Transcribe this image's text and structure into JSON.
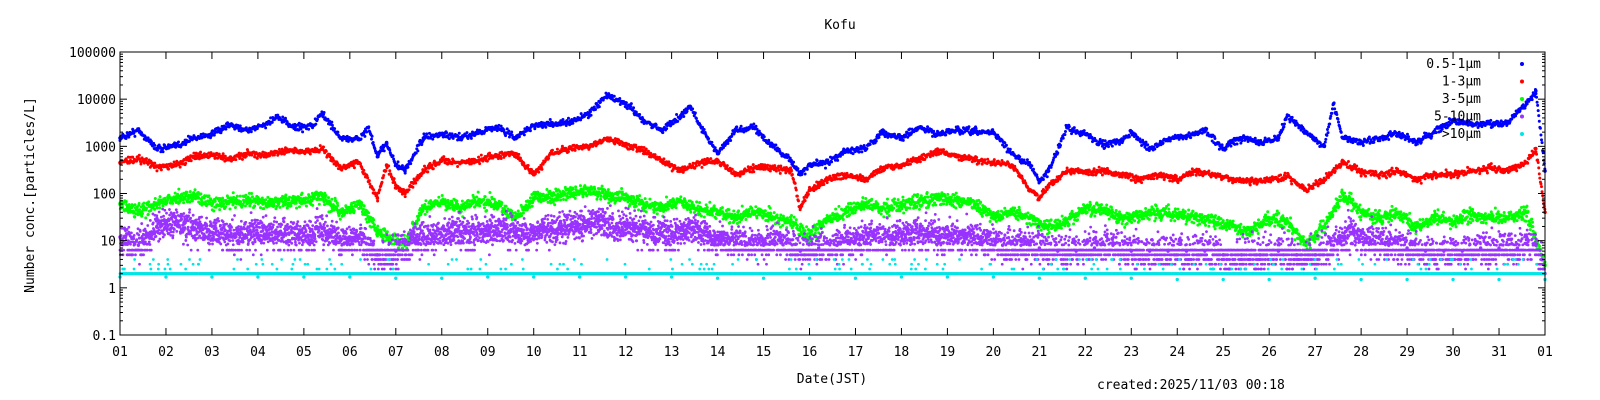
{
  "chart_data": {
    "type": "scatter",
    "title": "Kofu",
    "xlabel": "Date(JST)",
    "ylabel": "Number conc.[particles/L]",
    "yscale": "log",
    "ylim": [
      0.1,
      100000
    ],
    "xlim": [
      1,
      32
    ],
    "yticks": [
      "0.1",
      "1",
      "10",
      "100",
      "1000",
      "10000",
      "100000"
    ],
    "xticks": [
      "01",
      "02",
      "03",
      "04",
      "05",
      "06",
      "07",
      "08",
      "09",
      "10",
      "11",
      "12",
      "13",
      "14",
      "15",
      "16",
      "17",
      "18",
      "19",
      "20",
      "21",
      "22",
      "23",
      "24",
      "25",
      "26",
      "27",
      "28",
      "29",
      "30",
      "31",
      "01"
    ],
    "legend_position": "top-right",
    "footer": "created:2025/11/03 00:18",
    "series": [
      {
        "name": "0.5-1μm",
        "color": "#0000ff",
        "x": [
          1,
          1.4,
          1.8,
          2.2,
          2.6,
          3,
          3.4,
          3.8,
          4.2,
          4.4,
          4.8,
          5.2,
          5.4,
          5.8,
          6.2,
          6.4,
          6.6,
          6.8,
          7,
          7.2,
          7.6,
          8,
          8.4,
          8.8,
          9.2,
          9.6,
          10,
          10.4,
          10.8,
          11.2,
          11.6,
          12,
          12.4,
          12.8,
          13.2,
          13.4,
          13.6,
          14,
          14.4,
          14.8,
          15.2,
          15.6,
          15.8,
          16,
          16.4,
          16.8,
          17.2,
          17.6,
          18,
          18.4,
          18.8,
          19.2,
          19.6,
          20,
          20.4,
          20.8,
          21,
          21.2,
          21.6,
          22,
          22.4,
          22.8,
          23,
          23.4,
          23.8,
          24.2,
          24.6,
          25,
          25.4,
          25.8,
          26.2,
          26.4,
          26.8,
          27.2,
          27.4,
          27.6,
          28,
          28.4,
          28.8,
          29.2,
          29.6,
          30,
          30.4,
          30.8,
          31.2,
          31.4,
          31.6,
          31.8,
          32
        ],
        "values": [
          1500,
          2200,
          900,
          1000,
          1500,
          1800,
          2800,
          2200,
          3000,
          4200,
          2500,
          2800,
          5000,
          1500,
          1400,
          2500,
          600,
          1200,
          400,
          300,
          1500,
          1800,
          1500,
          2000,
          2600,
          1500,
          2800,
          3000,
          3200,
          5000,
          12000,
          8000,
          3500,
          2200,
          4500,
          7000,
          3000,
          700,
          2200,
          2500,
          1000,
          500,
          250,
          400,
          450,
          800,
          900,
          2000,
          1500,
          2500,
          1800,
          2200,
          2000,
          2000,
          700,
          400,
          180,
          300,
          2500,
          1800,
          1100,
          1300,
          2000,
          900,
          1400,
          1600,
          2200,
          900,
          1500,
          1200,
          1500,
          4500,
          2000,
          1000,
          8000,
          1500,
          1200,
          1500,
          1800,
          1200,
          2000,
          3500,
          3000,
          3000,
          3200,
          5500,
          8000,
          15000,
          300
        ]
      },
      {
        "name": "1-3μm",
        "color": "#ff0000",
        "x": [
          1,
          1.4,
          1.8,
          2.2,
          2.6,
          3,
          3.4,
          3.8,
          4.2,
          4.6,
          5,
          5.4,
          5.8,
          6.2,
          6.6,
          6.8,
          7,
          7.2,
          7.6,
          8,
          8.4,
          8.8,
          9.2,
          9.6,
          10,
          10.4,
          10.8,
          11.2,
          11.6,
          12,
          12.4,
          12.8,
          13.2,
          13.6,
          14,
          14.4,
          14.8,
          15.2,
          15.6,
          15.8,
          16,
          16.4,
          16.8,
          17.2,
          17.6,
          18,
          18.4,
          18.8,
          19.2,
          19.6,
          20,
          20.4,
          20.8,
          21,
          21.2,
          21.6,
          22,
          22.4,
          22.8,
          23.2,
          23.6,
          24,
          24.4,
          24.8,
          25.2,
          25.6,
          26,
          26.4,
          26.8,
          27.2,
          27.6,
          28,
          28.4,
          28.8,
          29.2,
          29.6,
          30,
          30.4,
          30.8,
          31.2,
          31.6,
          31.8,
          32
        ],
        "values": [
          450,
          550,
          380,
          400,
          600,
          650,
          550,
          700,
          650,
          800,
          750,
          900,
          350,
          450,
          80,
          400,
          150,
          100,
          300,
          500,
          450,
          500,
          650,
          700,
          250,
          700,
          900,
          1000,
          1500,
          1100,
          800,
          500,
          300,
          450,
          500,
          250,
          350,
          350,
          300,
          50,
          120,
          200,
          250,
          200,
          350,
          400,
          550,
          800,
          600,
          500,
          450,
          400,
          120,
          80,
          150,
          300,
          280,
          300,
          250,
          200,
          250,
          200,
          300,
          250,
          200,
          180,
          200,
          230,
          120,
          200,
          450,
          300,
          250,
          300,
          200,
          250,
          250,
          300,
          350,
          300,
          450,
          900,
          40
        ]
      },
      {
        "name": "3-5μm",
        "color": "#00ff00",
        "x": [
          1,
          1.4,
          1.8,
          2.2,
          2.6,
          3,
          3.4,
          3.8,
          4.2,
          4.6,
          5,
          5.4,
          5.8,
          6.2,
          6.6,
          7,
          7.2,
          7.6,
          8,
          8.4,
          8.8,
          9.2,
          9.6,
          10,
          10.4,
          10.8,
          11.2,
          11.6,
          12,
          12.4,
          12.8,
          13.2,
          13.6,
          14,
          14.4,
          14.8,
          15.2,
          15.6,
          16,
          16.4,
          16.8,
          17.2,
          17.6,
          18,
          18.4,
          18.8,
          19.2,
          19.6,
          20,
          20.4,
          20.8,
          21.2,
          21.6,
          22,
          22.4,
          22.8,
          23.2,
          23.6,
          24,
          24.4,
          24.8,
          25.2,
          25.6,
          26,
          26.4,
          26.8,
          27.2,
          27.6,
          28,
          28.4,
          28.8,
          29.2,
          29.6,
          30,
          30.4,
          30.8,
          31.2,
          31.6,
          32
        ],
        "values": [
          60,
          40,
          60,
          80,
          90,
          60,
          70,
          70,
          60,
          70,
          70,
          90,
          40,
          60,
          15,
          10,
          8,
          50,
          70,
          50,
          70,
          60,
          30,
          80,
          90,
          100,
          120,
          90,
          80,
          60,
          50,
          70,
          45,
          40,
          30,
          40,
          30,
          25,
          12,
          30,
          40,
          60,
          50,
          60,
          70,
          80,
          70,
          60,
          30,
          40,
          30,
          20,
          25,
          50,
          45,
          30,
          35,
          40,
          35,
          30,
          25,
          20,
          15,
          30,
          25,
          8,
          20,
          100,
          40,
          30,
          40,
          20,
          30,
          25,
          35,
          30,
          30,
          40,
          3
        ]
      },
      {
        "name": "5-10μm",
        "color": "#9933ff",
        "x": [
          1,
          1.4,
          1.8,
          2.2,
          2.6,
          3,
          3.4,
          3.8,
          4.2,
          4.6,
          5,
          5.4,
          5.8,
          6.2,
          6.6,
          7,
          7.4,
          7.8,
          8.2,
          8.6,
          9,
          9.4,
          9.8,
          10.2,
          10.6,
          11,
          11.4,
          11.8,
          12.2,
          12.6,
          13,
          13.4,
          13.8,
          14.2,
          14.6,
          15,
          15.4,
          15.8,
          16.2,
          16.6,
          17,
          17.4,
          17.8,
          18.2,
          18.6,
          19,
          19.4,
          19.8,
          20.2,
          20.6,
          21,
          21.4,
          21.8,
          22.2,
          22.6,
          23,
          23.4,
          23.8,
          24.2,
          24.6,
          25,
          25.4,
          25.8,
          26.2,
          26.6,
          27,
          27.4,
          27.8,
          28.2,
          28.6,
          29,
          29.4,
          29.8,
          30.2,
          30.6,
          31,
          31.4,
          31.8,
          32
        ],
        "values": [
          12,
          8,
          20,
          25,
          18,
          15,
          12,
          15,
          14,
          14,
          13,
          18,
          10,
          12,
          5,
          6,
          10,
          12,
          15,
          14,
          16,
          18,
          12,
          16,
          18,
          22,
          25,
          20,
          18,
          14,
          14,
          18,
          12,
          10,
          8,
          8,
          10,
          6,
          7,
          8,
          10,
          12,
          11,
          14,
          15,
          12,
          12,
          10,
          8,
          8,
          7,
          6,
          6,
          7,
          8,
          6,
          6,
          6,
          6,
          6,
          5,
          5,
          5,
          6,
          5,
          5,
          8,
          15,
          10,
          8,
          7,
          6,
          6,
          6,
          7,
          7,
          7,
          8,
          2
        ]
      },
      {
        "name": ">10μm",
        "color": "#00e5e5",
        "x": [
          1,
          2,
          3,
          4,
          5,
          6,
          7,
          8,
          9,
          10,
          11,
          12,
          13,
          14,
          15,
          16,
          17,
          18,
          19,
          20,
          21,
          22,
          23,
          24,
          25,
          26,
          27,
          28,
          29,
          30,
          31,
          32
        ],
        "values": [
          1.7,
          1.7,
          1.7,
          1.7,
          1.7,
          1.7,
          1.6,
          1.6,
          1.7,
          1.7,
          1.7,
          1.7,
          1.7,
          1.6,
          1.6,
          1.6,
          1.6,
          1.7,
          1.7,
          1.7,
          1.6,
          1.6,
          1.6,
          1.5,
          1.5,
          1.5,
          1.6,
          1.5,
          1.5,
          1.5,
          1.5,
          1.5
        ]
      }
    ]
  }
}
